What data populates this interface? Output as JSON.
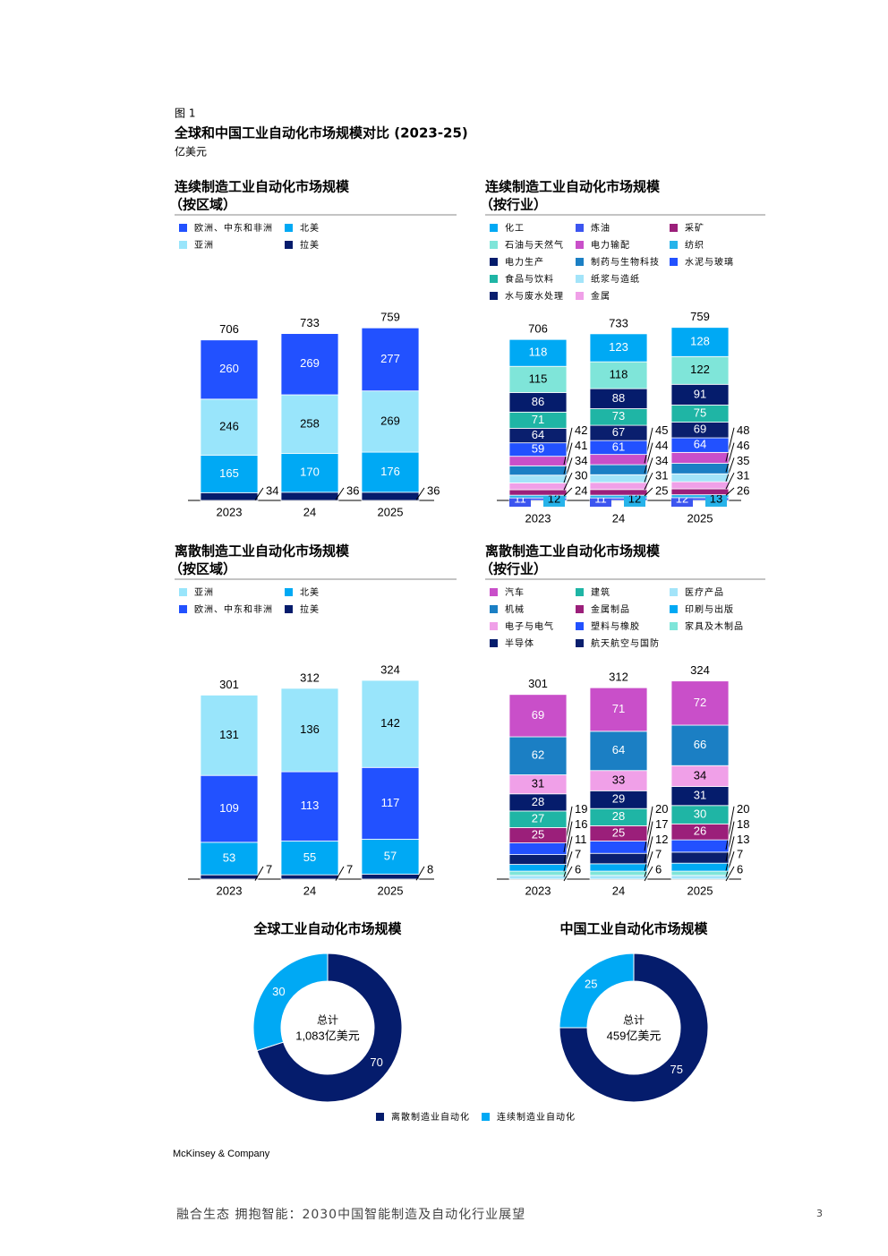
{
  "header": {
    "figure": "图 1",
    "title": "全球和中国工业自动化市场规模对比 (2023-25)",
    "unit": "亿美元"
  },
  "chart_data": [
    {
      "type": "stacked_bar",
      "title": "连续制造工业自动化市场规模",
      "subtitle": "（按区域）",
      "categories": [
        "2023",
        "24",
        "2025"
      ],
      "totals": [
        706,
        733,
        759
      ],
      "series": [
        {
          "name": "欧洲、中东和非洲",
          "color": "#2251ff",
          "values": [
            260,
            269,
            277
          ]
        },
        {
          "name": "北美",
          "color": "#00a9f4",
          "values": [
            165,
            170,
            176
          ]
        },
        {
          "name": "亚洲",
          "color": "#99e5fb",
          "values": [
            246,
            258,
            269
          ]
        },
        {
          "name": "拉美",
          "color": "#051c6c",
          "values": [
            34,
            36,
            36
          ]
        }
      ]
    },
    {
      "type": "stacked_bar",
      "title": "连续制造工业自动化市场规模",
      "subtitle": "（按行业）",
      "categories": [
        "2023",
        "24",
        "2025"
      ],
      "totals": [
        706,
        733,
        759
      ],
      "series": [
        {
          "name": "化工",
          "color": "#00a9f4",
          "values": [
            118,
            123,
            128
          ]
        },
        {
          "name": "炼油",
          "color": "#3c55f0",
          "values": [
            11,
            11,
            12
          ]
        },
        {
          "name": "采矿",
          "color": "#9b1f7a",
          "values": [
            24,
            25,
            26
          ]
        },
        {
          "name": "石油与天然气",
          "color": "#7fe5d9",
          "values": [
            115,
            118,
            122
          ]
        },
        {
          "name": "电力输配",
          "color": "#c94fc9",
          "values": [
            42,
            45,
            48
          ]
        },
        {
          "name": "纺织",
          "color": "#27b3ea",
          "values": [
            12,
            12,
            13
          ]
        },
        {
          "name": "电力生产",
          "color": "#051c6c",
          "values": [
            86,
            88,
            91
          ]
        },
        {
          "name": "制药与生物科技",
          "color": "#1b7fc4",
          "values": [
            41,
            44,
            46
          ]
        },
        {
          "name": "水泥与玻璃",
          "color": "#2251ff",
          "values": [
            59,
            61,
            64
          ]
        },
        {
          "name": "食品与饮料",
          "color": "#1fb5a5",
          "values": [
            71,
            73,
            75
          ]
        },
        {
          "name": "纸浆与造纸",
          "color": "#a3e4f9",
          "values": [
            34,
            34,
            35
          ]
        },
        {
          "name": "水与废水处理",
          "color": "#0a1f6e",
          "values": [
            64,
            67,
            69
          ]
        },
        {
          "name": "金属",
          "color": "#f0a0e8",
          "values": [
            30,
            31,
            31
          ]
        }
      ]
    },
    {
      "type": "stacked_bar",
      "title": "离散制造工业自动化市场规模",
      "subtitle": "（按区域）",
      "categories": [
        "2023",
        "24",
        "2025"
      ],
      "totals": [
        301,
        312,
        324
      ],
      "series": [
        {
          "name": "亚洲",
          "color": "#99e5fb",
          "values": [
            131,
            136,
            142
          ]
        },
        {
          "name": "北美",
          "color": "#00a9f4",
          "values": [
            53,
            55,
            57
          ]
        },
        {
          "name": "欧洲、中东和非洲",
          "color": "#2251ff",
          "values": [
            109,
            113,
            117
          ]
        },
        {
          "name": "拉美",
          "color": "#051c6c",
          "values": [
            7,
            7,
            8
          ]
        }
      ]
    },
    {
      "type": "stacked_bar",
      "title": "离散制造工业自动化市场规模",
      "subtitle": "（按行业）",
      "categories": [
        "2023",
        "24",
        "2025"
      ],
      "totals": [
        301,
        312,
        324
      ],
      "series": [
        {
          "name": "汽车",
          "color": "#c94fc9",
          "values": [
            69,
            71,
            72
          ]
        },
        {
          "name": "建筑",
          "color": "#1fb5a5",
          "values": [
            27,
            28,
            30
          ]
        },
        {
          "name": "医疗产品",
          "color": "#a3e4f9",
          "values": [
            6,
            6,
            6
          ]
        },
        {
          "name": "机械",
          "color": "#1b7fc4",
          "values": [
            62,
            64,
            66
          ]
        },
        {
          "name": "金属制品",
          "color": "#9b1f7a",
          "values": [
            25,
            25,
            26
          ]
        },
        {
          "name": "印刷与出版",
          "color": "#00a9f4",
          "values": [
            11,
            12,
            13
          ]
        },
        {
          "name": "电子与电气",
          "color": "#f0a0e8",
          "values": [
            31,
            33,
            34
          ]
        },
        {
          "name": "塑料与橡胶",
          "color": "#2251ff",
          "values": [
            19,
            20,
            20
          ]
        },
        {
          "name": "家具及木制品",
          "color": "#7fe5d9",
          "values": [
            7,
            7,
            7
          ]
        },
        {
          "name": "半导体",
          "color": "#051c6c",
          "values": [
            28,
            29,
            31
          ]
        },
        {
          "name": "航天航空与国防",
          "color": "#0a1f6e",
          "values": [
            16,
            17,
            18
          ]
        }
      ]
    },
    {
      "type": "donut",
      "title": "全球工业自动化市场规模",
      "values": [
        70,
        30
      ],
      "center_label": "总计",
      "center_value": "1,083亿美元"
    },
    {
      "type": "donut",
      "title": "中国工业自动化市场规模",
      "values": [
        75,
        25
      ],
      "center_label": "总计",
      "center_value": "459亿美元"
    }
  ],
  "donut_legend": {
    "series": [
      {
        "name": "离散制造业自动化",
        "color": "#051c6c"
      },
      {
        "name": "连续制造业自动化",
        "color": "#00a9f4"
      }
    ]
  },
  "footer": {
    "brand": "McKinsey & Company",
    "report": "融合生态 拥抱智能：2030中国智能制造及自动化行业展望",
    "page": 3
  }
}
